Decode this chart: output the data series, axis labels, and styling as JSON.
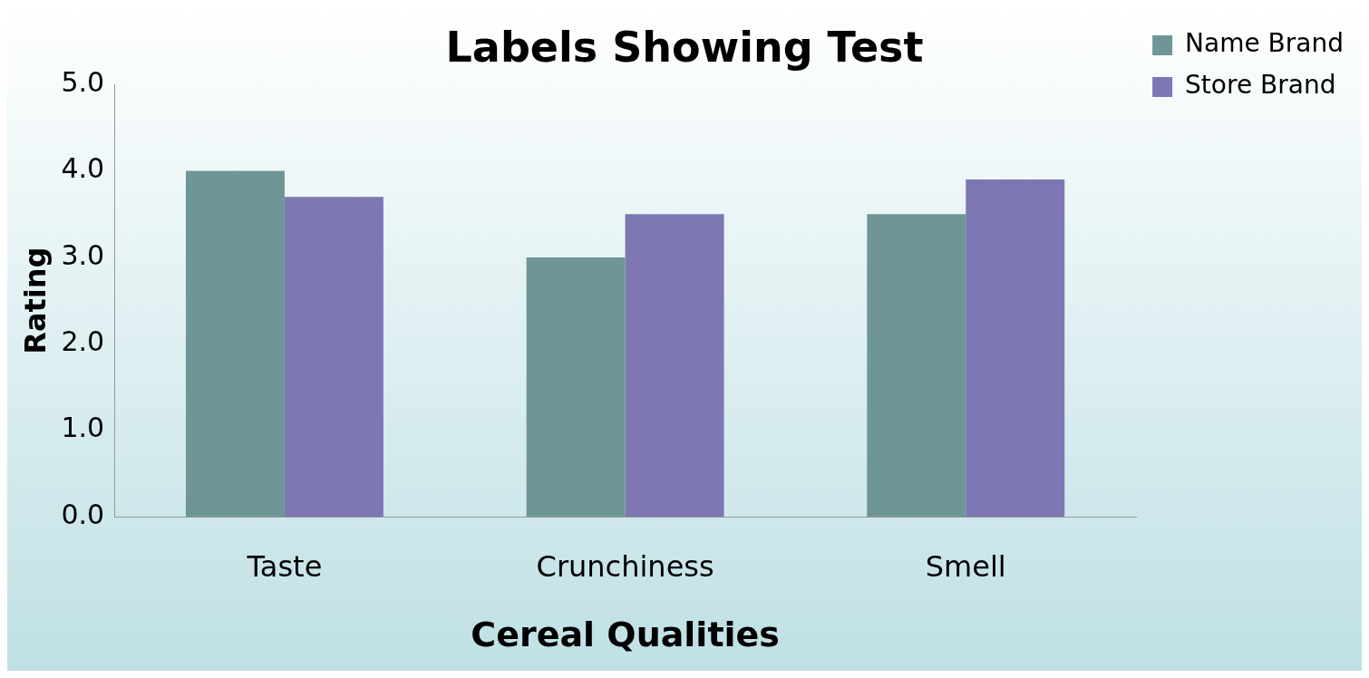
{
  "chart_data": {
    "type": "bar",
    "title": "Labels Showing Test",
    "xlabel": "Cereal Qualities",
    "ylabel": "Rating",
    "categories": [
      "Taste",
      "Crunchiness",
      "Smell"
    ],
    "series": [
      {
        "name": "Name Brand",
        "color": "#6f9696",
        "values": [
          4.0,
          3.0,
          3.5
        ]
      },
      {
        "name": "Store Brand",
        "color": "#7d77b3",
        "values": [
          3.7,
          3.5,
          3.9
        ]
      }
    ],
    "ylim": [
      0,
      5
    ],
    "yticks": [
      {
        "value": 0,
        "label": "0.0"
      },
      {
        "value": 1,
        "label": "1.0"
      },
      {
        "value": 2,
        "label": "2.0"
      },
      {
        "value": 3,
        "label": "3.0"
      },
      {
        "value": 4,
        "label": "4.0"
      },
      {
        "value": 5,
        "label": "5.0"
      }
    ],
    "grid": false,
    "legend": "top right"
  }
}
